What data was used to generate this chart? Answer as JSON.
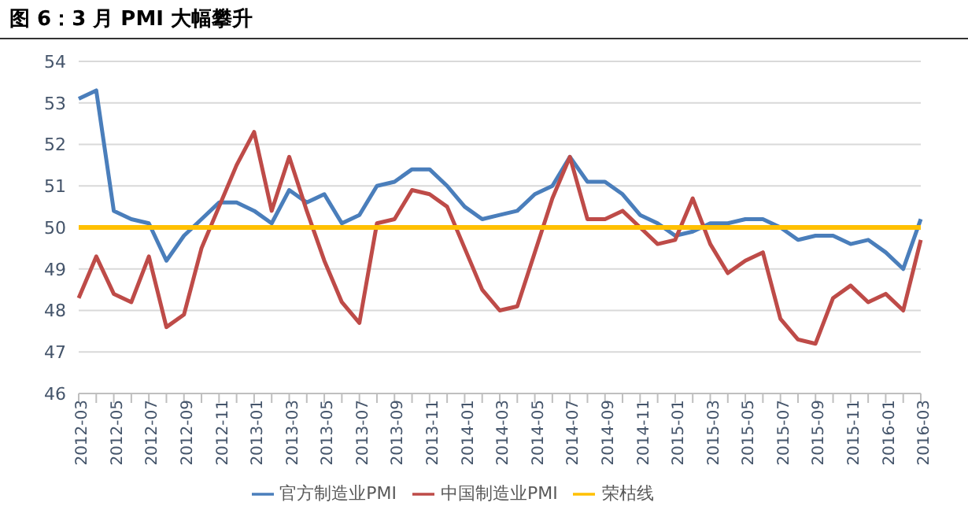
{
  "chart_data": {
    "type": "line",
    "title": "图 6：3 月 PMI 大幅攀升",
    "categories": [
      "2012-03",
      null,
      "2012-05",
      null,
      "2012-07",
      null,
      "2012-09",
      null,
      "2012-11",
      null,
      "2013-01",
      null,
      "2013-03",
      null,
      "2013-05",
      null,
      "2013-07",
      null,
      "2013-09",
      null,
      "2013-11",
      null,
      "2014-01",
      null,
      "2014-03",
      null,
      "2014-05",
      null,
      "2014-07",
      null,
      "2014-09",
      null,
      "2014-11",
      null,
      "2015-01",
      null,
      "2015-03",
      null,
      "2015-05",
      null,
      "2015-07",
      null,
      "2015-09",
      null,
      "2015-11",
      null,
      "2016-01",
      null,
      "2016-03"
    ],
    "series": [
      {
        "name": "官方制造业PMI",
        "color": "#4a7ebb",
        "values": [
          53.1,
          53.3,
          50.4,
          50.2,
          50.1,
          49.2,
          49.8,
          50.2,
          50.6,
          50.6,
          50.4,
          50.1,
          50.9,
          50.6,
          50.8,
          50.1,
          50.3,
          51.0,
          51.1,
          51.4,
          51.4,
          51.0,
          50.5,
          50.2,
          50.3,
          50.4,
          50.8,
          51.0,
          51.7,
          51.1,
          51.1,
          50.8,
          50.3,
          50.1,
          49.8,
          49.9,
          50.1,
          50.1,
          50.2,
          50.2,
          50.0,
          49.7,
          49.8,
          49.8,
          49.6,
          49.7,
          49.4,
          49.0,
          50.2
        ]
      },
      {
        "name": "中国制造业PMI",
        "color": "#be4b48",
        "values": [
          48.3,
          49.3,
          48.4,
          48.2,
          49.3,
          47.6,
          47.9,
          49.5,
          50.5,
          51.5,
          52.3,
          50.4,
          51.7,
          50.4,
          49.2,
          48.2,
          47.7,
          50.1,
          50.2,
          50.9,
          50.8,
          50.5,
          49.5,
          48.5,
          48.0,
          48.1,
          49.4,
          50.7,
          51.7,
          50.2,
          50.2,
          50.4,
          50.0,
          49.6,
          49.7,
          50.7,
          49.6,
          48.9,
          49.2,
          49.4,
          47.8,
          47.3,
          47.2,
          48.3,
          48.6,
          48.2,
          48.4,
          48.0,
          49.7
        ]
      },
      {
        "name": "荣枯线",
        "color": "#ffc000",
        "values": [
          50,
          50,
          50,
          50,
          50,
          50,
          50,
          50,
          50,
          50,
          50,
          50,
          50,
          50,
          50,
          50,
          50,
          50,
          50,
          50,
          50,
          50,
          50,
          50,
          50,
          50,
          50,
          50,
          50,
          50,
          50,
          50,
          50,
          50,
          50,
          50,
          50,
          50,
          50,
          50,
          50,
          50,
          50,
          50,
          50,
          50,
          50,
          50,
          50
        ]
      }
    ],
    "ylim": [
      46,
      54
    ],
    "yticks": [
      46,
      47,
      48,
      49,
      50,
      51,
      52,
      53,
      54
    ],
    "grid": "y",
    "legend": "bottom",
    "marker": "none",
    "line_style": "solid"
  }
}
